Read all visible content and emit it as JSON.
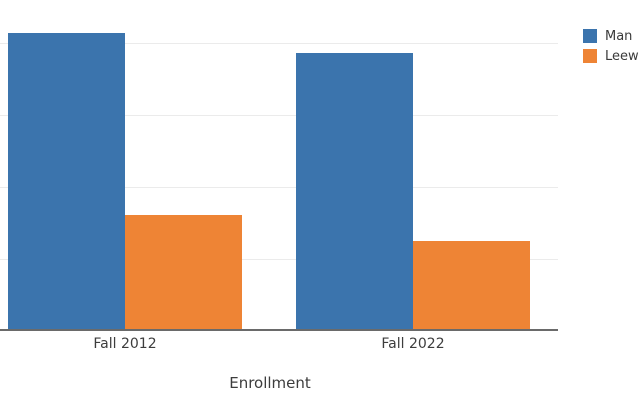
{
  "chart_data": {
    "type": "bar",
    "title": "",
    "xlabel": "Enrollment",
    "ylabel": "",
    "categories": [
      "Fall 2012",
      "Fall 2022"
    ],
    "series": [
      {
        "name": "Man",
        "color": "#3b74ad",
        "values": [
          20550,
          19150
        ]
      },
      {
        "name": "Leew",
        "color": "#ee8435",
        "values": [
          7950,
          6100
        ]
      }
    ],
    "y_gridline_values": [
      5000,
      10000,
      15000,
      20000
    ],
    "ylim": [
      0,
      23000
    ],
    "grid": "horizontal light gray lines, y labels cropped off-frame left",
    "legend_position": "top-right, labels clipped at right image edge",
    "axis_line_color": "#6a6a6a",
    "gridline_color": "#ebebeb"
  }
}
